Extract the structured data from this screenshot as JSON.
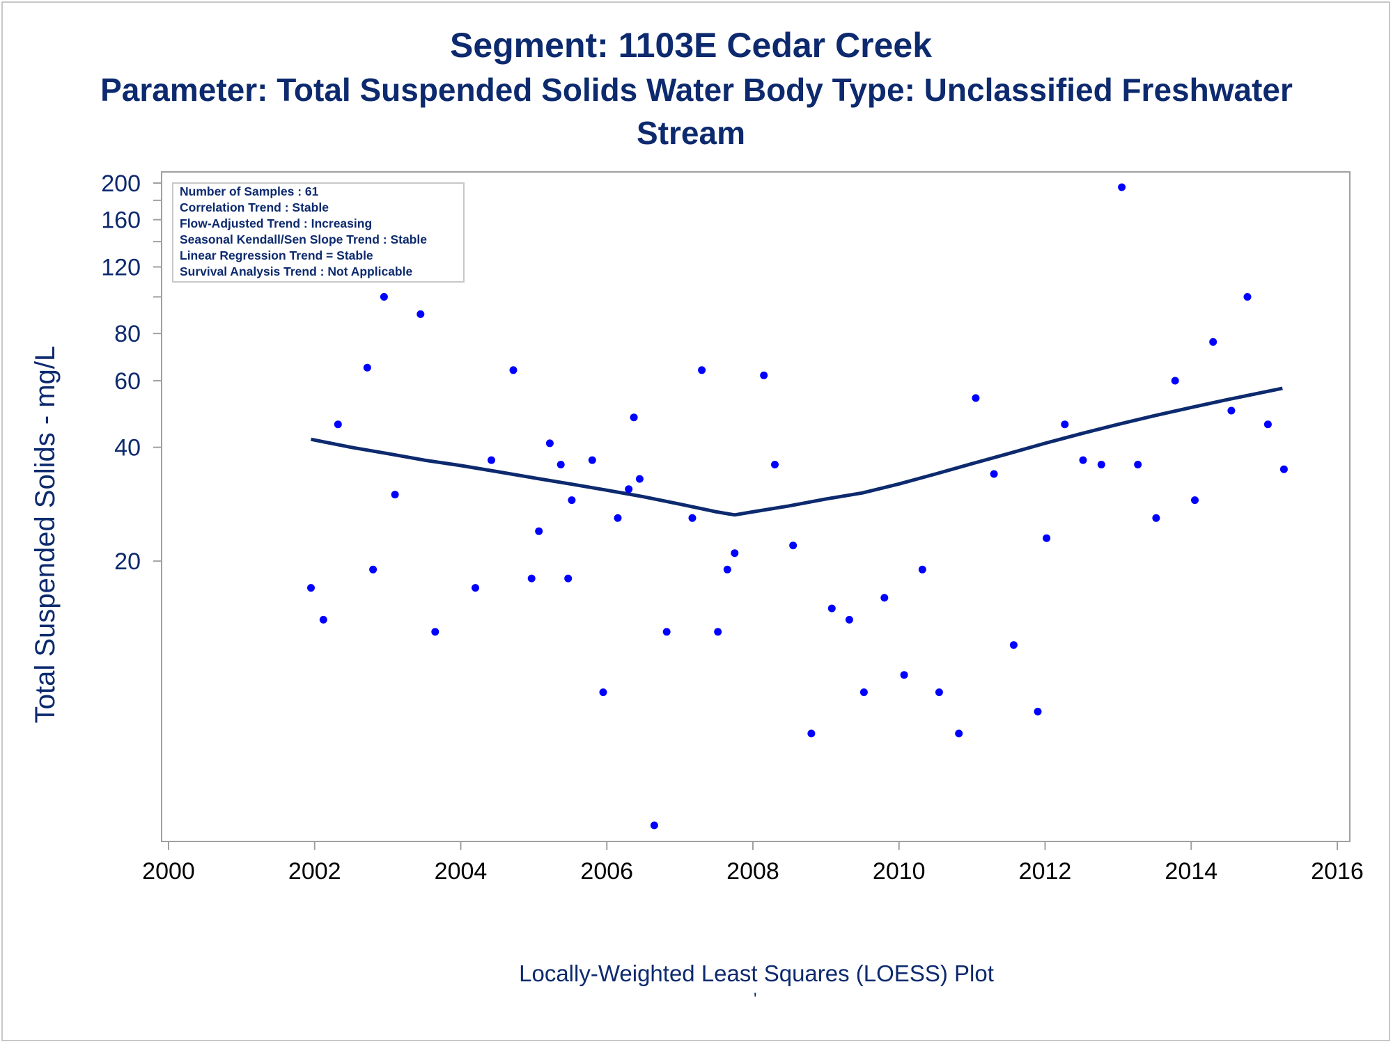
{
  "titles": {
    "line1": "Segment: 1103E  Cedar Creek",
    "line2": "Parameter: Total Suspended Solids   Water Body Type: Unclassified Freshwater",
    "line3": "Stream"
  },
  "footnote": "Locally-Weighted Least Squares (LOESS) Plot",
  "footnote_mark": "'",
  "colors": {
    "text": "#0d2a6e",
    "points": "#0000ff",
    "loess_line": "#0d2a6e",
    "axis": "#a0a0a0"
  },
  "chart_data": {
    "type": "scatter",
    "title": "Segment: 1103E  Cedar Creek",
    "xlabel": "",
    "ylabel": "Total Suspended Solids - mg/L",
    "xlim": [
      2000,
      2016
    ],
    "ylim": [
      3.8,
      200
    ],
    "y_scale": "log",
    "x_ticks": [
      2000,
      2002,
      2004,
      2006,
      2008,
      2010,
      2012,
      2014,
      2016
    ],
    "y_ticks_labeled": [
      20,
      40,
      60,
      80,
      120,
      160,
      200
    ],
    "y_ticks_minor": [
      100,
      140,
      180
    ],
    "grid": false,
    "legend_position": "top-left",
    "stats_box": [
      "Number of Samples : 61",
      "Correlation Trend : Stable",
      "Flow-Adjusted Trend : Increasing",
      "Seasonal Kendall/Sen Slope Trend : Stable",
      "Linear Regression Trend = Stable",
      "Survival Analysis Trend : Not Applicable"
    ],
    "series": [
      {
        "kind": "points",
        "points": [
          [
            2001.95,
            17
          ],
          [
            2002.12,
            14
          ],
          [
            2002.32,
            46
          ],
          [
            2002.72,
            65
          ],
          [
            2002.8,
            19
          ],
          [
            2002.95,
            100
          ],
          [
            2003.1,
            30
          ],
          [
            2003.45,
            90
          ],
          [
            2003.65,
            13
          ],
          [
            2004.2,
            17
          ],
          [
            2004.42,
            37
          ],
          [
            2004.72,
            64
          ],
          [
            2004.97,
            18
          ],
          [
            2005.07,
            24
          ],
          [
            2005.22,
            41
          ],
          [
            2005.37,
            36
          ],
          [
            2005.47,
            18
          ],
          [
            2005.52,
            29
          ],
          [
            2005.8,
            37
          ],
          [
            2005.95,
            9
          ],
          [
            2006.15,
            26
          ],
          [
            2006.3,
            31
          ],
          [
            2006.37,
            48
          ],
          [
            2006.45,
            33
          ],
          [
            2006.65,
            4
          ],
          [
            2006.82,
            13
          ],
          [
            2007.17,
            26
          ],
          [
            2007.3,
            64
          ],
          [
            2007.52,
            13
          ],
          [
            2007.65,
            19
          ],
          [
            2007.75,
            21
          ],
          [
            2008.15,
            62
          ],
          [
            2008.3,
            36
          ],
          [
            2008.55,
            22
          ],
          [
            2008.8,
            7
          ],
          [
            2009.08,
            15
          ],
          [
            2009.32,
            14
          ],
          [
            2009.52,
            9
          ],
          [
            2009.8,
            16
          ],
          [
            2010.07,
            10
          ],
          [
            2010.32,
            19
          ],
          [
            2010.55,
            9
          ],
          [
            2010.82,
            7
          ],
          [
            2011.05,
            54
          ],
          [
            2011.3,
            34
          ],
          [
            2011.57,
            12
          ],
          [
            2011.9,
            8
          ],
          [
            2012.02,
            23
          ],
          [
            2012.27,
            46
          ],
          [
            2012.52,
            37
          ],
          [
            2012.77,
            36
          ],
          [
            2013.05,
            195
          ],
          [
            2013.27,
            36
          ],
          [
            2013.52,
            26
          ],
          [
            2013.78,
            60
          ],
          [
            2014.05,
            29
          ],
          [
            2014.3,
            76
          ],
          [
            2014.55,
            50
          ],
          [
            2014.77,
            100
          ],
          [
            2015.05,
            46
          ],
          [
            2015.27,
            35
          ]
        ]
      },
      {
        "kind": "loess",
        "points": [
          [
            2001.95,
            42
          ],
          [
            2002.5,
            40
          ],
          [
            2003,
            38.5
          ],
          [
            2003.5,
            37
          ],
          [
            2004,
            35.8
          ],
          [
            2004.5,
            34.5
          ],
          [
            2005,
            33.2
          ],
          [
            2005.5,
            32
          ],
          [
            2006,
            30.8
          ],
          [
            2006.5,
            29.6
          ],
          [
            2007,
            28.3
          ],
          [
            2007.5,
            27.0
          ],
          [
            2007.75,
            26.5
          ],
          [
            2008,
            27.0
          ],
          [
            2008.5,
            28
          ],
          [
            2009,
            29.2
          ],
          [
            2009.5,
            30.3
          ],
          [
            2010,
            32.0
          ],
          [
            2010.5,
            34.0
          ],
          [
            2011,
            36.2
          ],
          [
            2011.5,
            38.5
          ],
          [
            2012,
            41
          ],
          [
            2012.5,
            43.5
          ],
          [
            2013,
            46
          ],
          [
            2013.5,
            48.5
          ],
          [
            2014,
            51
          ],
          [
            2014.5,
            53.5
          ],
          [
            2015,
            56
          ],
          [
            2015.25,
            57.3
          ]
        ]
      }
    ]
  }
}
